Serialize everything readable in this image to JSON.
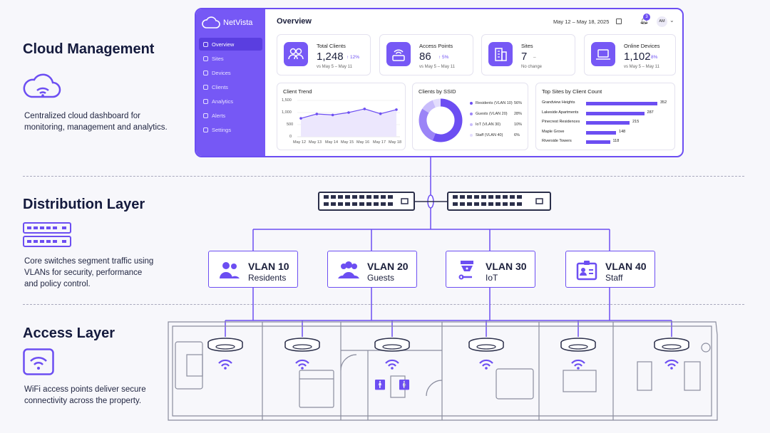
{
  "layers": {
    "cloud": {
      "title": "Cloud Management",
      "desc1": "Centralized cloud dashboard for",
      "desc2": "monitoring, management and analytics."
    },
    "distribution": {
      "title": "Distribution Layer",
      "desc1": "Core switches segment traffic using",
      "desc2": "VLANs for security, performance",
      "desc3": "and policy control."
    },
    "access": {
      "title": "Access Layer",
      "desc1": "WiFi access points deliver secure",
      "desc2": "connectivity across the property."
    }
  },
  "dashboard": {
    "brand": "NetVista",
    "title": "Overview",
    "date_range": "May 12 – May 18, 2025",
    "notification_count": "3",
    "user_initials": "AM",
    "nav": [
      "Overview",
      "Sites",
      "Devices",
      "Clients",
      "Analytics",
      "Alerts",
      "Settings"
    ],
    "stats": [
      {
        "label": "Total Clients",
        "value": "1,248",
        "delta": "↑ 12%",
        "sub": "vs May 5 – May 11"
      },
      {
        "label": "Access Points",
        "value": "86",
        "delta": "↑ 5%",
        "sub": "vs May 5 – May 11"
      },
      {
        "label": "Sites",
        "value": "7",
        "delta": "–",
        "sub": "No change"
      },
      {
        "label": "Online Devices",
        "value": "1,102",
        "delta": "↑ 8%",
        "sub": "vs May 5 – May 11"
      }
    ],
    "client_trend": {
      "title": "Client Trend",
      "y_ticks": [
        "1,500",
        "1,000",
        "500",
        "0"
      ],
      "x_ticks": [
        "May 12",
        "May 13",
        "May 14",
        "May 15",
        "May 16",
        "May 17",
        "May 18"
      ],
      "values": [
        760,
        940,
        900,
        1000,
        1150,
        950,
        1120
      ]
    },
    "ssid": {
      "title": "Clients by SSID",
      "items": [
        {
          "label": "Residents  (VLAN 10)",
          "pct": "56%",
          "value": 56,
          "color": "#6c4ef2"
        },
        {
          "label": "Guests  (VLAN 20)",
          "pct": "28%",
          "value": 28,
          "color": "#9b84f7"
        },
        {
          "label": "IoT  (VLAN 30)",
          "pct": "10%",
          "value": 10,
          "color": "#c8bcfb"
        },
        {
          "label": "Staff  (VLAN 40)",
          "pct": "6%",
          "value": 6,
          "color": "#e3ddfd"
        }
      ]
    },
    "top_sites": {
      "title": "Top Sites by Client Count",
      "items": [
        {
          "name": "Grandview Heights",
          "value": 352,
          "label": "352"
        },
        {
          "name": "Lakeside Apartments",
          "value": 287,
          "label": "287"
        },
        {
          "name": "Pinecrest Residences",
          "value": 215,
          "label": "215"
        },
        {
          "name": "Maple Grove",
          "value": 148,
          "label": "148"
        },
        {
          "name": "Riverside Towers",
          "value": 118,
          "label": "118"
        }
      ]
    }
  },
  "vlans": [
    {
      "name": "VLAN 10",
      "sub": "Residents",
      "icon": "residents-icon"
    },
    {
      "name": "VLAN 20",
      "sub": "Guests",
      "icon": "guests-icon"
    },
    {
      "name": "VLAN 30",
      "sub": "IoT",
      "icon": "iot-icon"
    },
    {
      "name": "VLAN 40",
      "sub": "Staff",
      "icon": "staff-badge-icon"
    }
  ],
  "colors": {
    "accent": "#6c4ef2",
    "sidebar": "#7658f5",
    "ink": "#1b1f3b"
  }
}
